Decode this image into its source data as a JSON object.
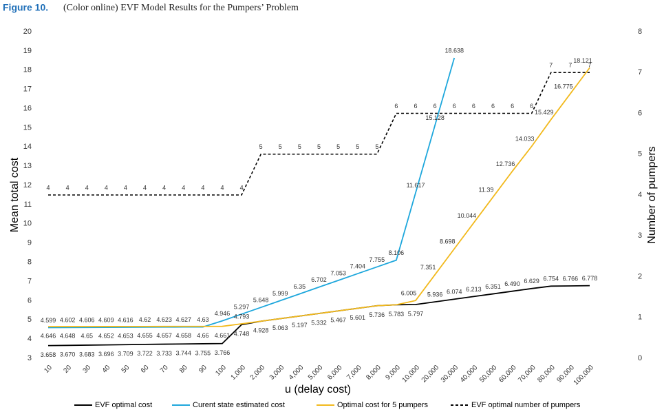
{
  "chart_data": {
    "type": "line",
    "figure_label": "Figure 10.",
    "title": "(Color online) EVF Model Results for the Pumpers’ Problem",
    "x_label": "u (delay cost)",
    "y_label": "Mean total cost",
    "y2_label": "Number of pumpers",
    "categories": [
      "10",
      "20",
      "30",
      "40",
      "50",
      "60",
      "70",
      "80",
      "90",
      "100",
      "1,000",
      "2,000",
      "3,000",
      "4,000",
      "5,000",
      "6,000",
      "7,000",
      "8,000",
      "9,000",
      "10,000",
      "20,000",
      "30,000",
      "40,000",
      "50,000",
      "60,000",
      "70,000",
      "80,000",
      "90,000",
      "100,000"
    ],
    "ylim": [
      3,
      20
    ],
    "yticks": [
      3,
      4,
      5,
      6,
      7,
      8,
      9,
      10,
      11,
      12,
      13,
      14,
      15,
      16,
      17,
      18,
      19,
      20
    ],
    "y2lim": [
      0,
      8
    ],
    "y2ticks": [
      0,
      1,
      2,
      3,
      4,
      5,
      6,
      7,
      8
    ],
    "series": [
      {
        "name": "EVF optimal cost",
        "color": "#000000",
        "dash": false,
        "values": [
          3.658,
          3.67,
          3.683,
          3.696,
          3.709,
          3.722,
          3.733,
          3.744,
          3.755,
          3.766,
          4.748,
          4.928,
          5.063,
          5.197,
          5.332,
          5.467,
          5.601,
          5.736,
          5.783,
          5.797,
          5.936,
          6.074,
          6.213,
          6.351,
          6.49,
          6.629,
          6.754,
          6.766,
          6.778
        ],
        "value_labels": [
          "3.658",
          "3.670",
          "3.683",
          "3.696",
          "3.709",
          "3.722",
          "3.733",
          "3.744",
          "3.755",
          "3.766",
          "4.748",
          "4.928",
          "5.063",
          "5.197",
          "5.332",
          "5.467",
          "5.601",
          "5.736",
          "5.783",
          "5.797",
          "5.936",
          "6.074",
          "6.213",
          "6.351",
          "6.490",
          "6.629",
          "6.754",
          "6.766",
          "6.778"
        ]
      },
      {
        "name": "Curent state estimated cost",
        "color": "#1ea7dc",
        "dash": false,
        "values": [
          4.599,
          4.602,
          4.606,
          4.609,
          4.616,
          4.62,
          4.623,
          4.627,
          4.63,
          4.946,
          5.297,
          5.648,
          5.999,
          6.35,
          6.702,
          7.053,
          7.404,
          7.755,
          8.106,
          11.617,
          15.128,
          18.638,
          null,
          null,
          null,
          null,
          null,
          null,
          null
        ],
        "value_labels": [
          "4.599",
          "4.602",
          "4.606",
          "4.609",
          "4.616",
          "4.62",
          "4.623",
          "4.627",
          "4.63",
          "4.946",
          "5.297",
          "5.648",
          "5.999",
          "6.35",
          "6.702",
          "7.053",
          "7.404",
          "7.755",
          "8.106",
          "11.617",
          "15.128",
          "18.638",
          null,
          null,
          null,
          null,
          null,
          null,
          null
        ]
      },
      {
        "name": "Optimal cost for 5 pumpers",
        "color": "#f2b91c",
        "dash": false,
        "values": [
          4.646,
          4.648,
          4.65,
          4.652,
          4.653,
          4.655,
          4.657,
          4.658,
          4.66,
          4.661,
          4.793,
          4.928,
          5.063,
          5.197,
          5.332,
          5.467,
          5.601,
          5.736,
          5.783,
          6.005,
          7.351,
          8.698,
          10.044,
          11.39,
          12.736,
          14.033,
          15.429,
          16.775,
          18.121
        ],
        "value_labels": [
          "4.646",
          "4.648",
          "4.65",
          "4.652",
          "4.653",
          "4.655",
          "4.657",
          "4.658",
          "4.66",
          "4.661",
          "4.793",
          null,
          null,
          null,
          null,
          null,
          null,
          null,
          null,
          "6.005",
          "7.351",
          "8.698",
          "10.044",
          "11.39",
          "12.736",
          "14.033",
          "15.429",
          "16.775",
          "18.121"
        ]
      },
      {
        "name": "EVF optimal number of pumpers",
        "color": "#000000",
        "dash": true,
        "axis": "y2",
        "values": [
          4,
          4,
          4,
          4,
          4,
          4,
          4,
          4,
          4,
          4,
          4,
          5,
          5,
          5,
          5,
          5,
          5,
          5,
          6,
          6,
          6,
          6,
          6,
          6,
          6,
          6,
          7,
          7,
          7
        ]
      }
    ]
  }
}
